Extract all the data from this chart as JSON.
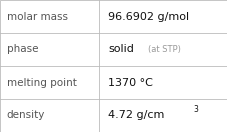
{
  "rows": [
    {
      "label": "molar mass",
      "value": "96.6902 g/mol",
      "suffix": null,
      "superscript": null
    },
    {
      "label": "phase",
      "value": "solid",
      "suffix": " (at STP)",
      "superscript": null
    },
    {
      "label": "melting point",
      "value": "1370 °C",
      "suffix": null,
      "superscript": null
    },
    {
      "label": "density",
      "value": "4.72 g/cm",
      "suffix": null,
      "superscript": "3"
    }
  ],
  "col_split": 0.435,
  "bg_color": "#ffffff",
  "border_color": "#bbbbbb",
  "label_color": "#555555",
  "value_color": "#111111",
  "suffix_color": "#999999",
  "label_fontsize": 7.5,
  "value_fontsize": 8.0,
  "suffix_fontsize": 6.0,
  "super_fontsize": 5.5
}
